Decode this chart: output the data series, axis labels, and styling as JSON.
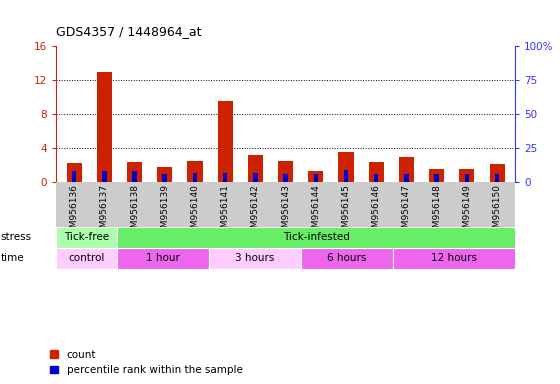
{
  "title": "GDS4357 / 1448964_at",
  "samples": [
    "GSM956136",
    "GSM956137",
    "GSM956138",
    "GSM956139",
    "GSM956140",
    "GSM956141",
    "GSM956142",
    "GSM956143",
    "GSM956144",
    "GSM956145",
    "GSM956146",
    "GSM956147",
    "GSM956148",
    "GSM956149",
    "GSM956150"
  ],
  "count_values": [
    2.2,
    13.0,
    2.4,
    1.8,
    2.5,
    9.6,
    3.2,
    2.5,
    1.3,
    3.6,
    2.4,
    3.0,
    1.5,
    1.5,
    2.1
  ],
  "percentile_values": [
    8,
    8,
    8,
    6,
    7,
    7,
    7,
    6,
    6,
    9,
    6,
    6,
    6,
    6,
    6
  ],
  "count_color": "#cc2200",
  "percentile_color": "#0000cc",
  "ylim_left": [
    0,
    16
  ],
  "ylim_right": [
    0,
    100
  ],
  "yticks_left": [
    0,
    4,
    8,
    12,
    16
  ],
  "yticks_right": [
    0,
    25,
    50,
    75,
    100
  ],
  "grid_values": [
    4,
    8,
    12
  ],
  "stress_groups": [
    {
      "label": "Tick-free",
      "start": 0,
      "end": 2,
      "color": "#aaffaa"
    },
    {
      "label": "Tick-infested",
      "start": 2,
      "end": 15,
      "color": "#66ee66"
    }
  ],
  "time_groups": [
    {
      "label": "control",
      "start": 0,
      "end": 2,
      "color": "#ffccff"
    },
    {
      "label": "1 hour",
      "start": 2,
      "end": 5,
      "color": "#ee66ee"
    },
    {
      "label": "3 hours",
      "start": 5,
      "end": 8,
      "color": "#ffccff"
    },
    {
      "label": "6 hours",
      "start": 8,
      "end": 11,
      "color": "#ee66ee"
    },
    {
      "label": "12 hours",
      "start": 11,
      "end": 15,
      "color": "#ee66ee"
    }
  ],
  "legend_count_label": "count",
  "legend_percentile_label": "percentile rank within the sample",
  "count_color_legend": "#cc2200",
  "percentile_color_legend": "#0000cc",
  "left_axis_color": "#cc2200",
  "right_axis_color": "#3333ff",
  "tick_bg_color": "#cccccc",
  "plot_bg_color": "#ffffff"
}
